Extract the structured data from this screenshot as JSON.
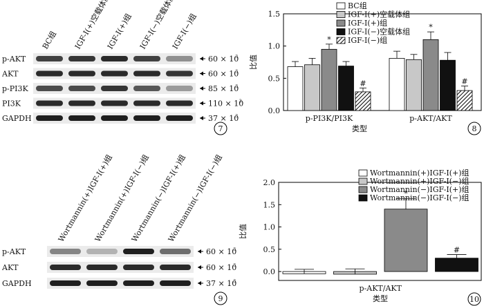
{
  "panel7": {
    "lanes": [
      "BC组",
      "IGF-Ⅰ(+)空载体组",
      "IGF-Ⅰ(+)组",
      "IGF-Ⅰ(−)空载体组",
      "IGF-Ⅰ(−)组"
    ],
    "rows": [
      {
        "name": "p-AKT",
        "mw": "60 × 10",
        "exp": "3",
        "intensity": [
          0.8,
          0.85,
          0.9,
          0.8,
          0.45
        ]
      },
      {
        "name": "AKT",
        "mw": "60 × 10",
        "exp": "3",
        "intensity": [
          0.9,
          0.9,
          0.9,
          0.9,
          0.85
        ]
      },
      {
        "name": "p-PI3K",
        "mw": "85 × 10",
        "exp": "3",
        "intensity": [
          0.75,
          0.75,
          0.85,
          0.7,
          0.4
        ]
      },
      {
        "name": "PI3K",
        "mw": "110 × 10",
        "exp": "3",
        "intensity": [
          0.9,
          0.9,
          0.9,
          0.9,
          0.9
        ]
      },
      {
        "name": "GAPDH",
        "mw": "37 × 10",
        "exp": "3",
        "intensity": [
          0.95,
          0.95,
          0.95,
          0.95,
          0.95
        ]
      }
    ],
    "badge": "7"
  },
  "panel9": {
    "lanes": [
      "Wortmannin(+)IGF-Ⅰ(+)组",
      "Wortmannin(+)IGF-Ⅰ(−)组",
      "Wortmannin(−)IGF-Ⅰ(+)组",
      "Wortmannin(−)IGF-Ⅰ(−)组"
    ],
    "rows": [
      {
        "name": "p-AKT",
        "mw": "60 × 10",
        "exp": "3",
        "intensity": [
          0.5,
          0.3,
          0.95,
          0.6
        ]
      },
      {
        "name": "AKT",
        "mw": "60 × 10",
        "exp": "3",
        "intensity": [
          0.9,
          0.9,
          0.9,
          0.9
        ]
      },
      {
        "name": "GAPDH",
        "mw": "37 × 10",
        "exp": "3",
        "intensity": [
          0.95,
          0.95,
          0.95,
          0.95
        ]
      }
    ],
    "badge": "9"
  },
  "chart_data": [
    {
      "type": "bar",
      "title": "",
      "xlabel": "类型",
      "ylabel": "比值",
      "ylim": [
        0,
        1.5
      ],
      "yticks": [
        "0.0",
        "0.5",
        "1.0",
        "1.5"
      ],
      "categories": [
        "p-PI3K/PI3K",
        "p-AKT/AKT"
      ],
      "series": [
        {
          "name": "BC组",
          "color": "#ffffff",
          "values": [
            0.68,
            0.81
          ],
          "errors": [
            0.08,
            0.11
          ],
          "marks": [
            "",
            ""
          ]
        },
        {
          "name": "IGF-Ⅰ(+)空载体组",
          "color": "#c8c8c8",
          "values": [
            0.71,
            0.79
          ],
          "errors": [
            0.1,
            0.08
          ],
          "marks": [
            "",
            ""
          ]
        },
        {
          "name": "IGF-Ⅰ(+)组",
          "color": "#8a8a8a",
          "values": [
            0.95,
            1.1
          ],
          "errors": [
            0.08,
            0.12
          ],
          "marks": [
            "*",
            "*"
          ]
        },
        {
          "name": "IGF-Ⅰ(−)空载体组",
          "color": "#111111",
          "values": [
            0.69,
            0.78
          ],
          "errors": [
            0.07,
            0.12
          ],
          "marks": [
            "",
            ""
          ]
        },
        {
          "name": "IGF-Ⅰ(−)组",
          "color": "hatch",
          "values": [
            0.29,
            0.31
          ],
          "errors": [
            0.06,
            0.07
          ],
          "marks": [
            "#",
            "#"
          ]
        }
      ],
      "badge": "8",
      "legend_position": "top-right"
    },
    {
      "type": "bar",
      "title": "",
      "xlabel": "类型",
      "ylabel": "比值",
      "ylim": [
        -0.2,
        2.0
      ],
      "yticks": [
        "0.0",
        "0.5",
        "1.0",
        "1.5",
        "2.0"
      ],
      "categories": [
        "p-AKT/AKT"
      ],
      "series": [
        {
          "name": "Wortmannin(+)IGF-Ⅰ(+)组",
          "color": "#ffffff",
          "values": [
            -0.05
          ],
          "errors": [
            0.1
          ],
          "marks": [
            ""
          ]
        },
        {
          "name": "Wortmannin(+)IGF-Ⅰ(−)组",
          "color": "#c8c8c8",
          "values": [
            -0.06
          ],
          "errors": [
            0.12
          ],
          "marks": [
            ""
          ]
        },
        {
          "name": "Wortmannin(−)IGF-Ⅰ(+)组",
          "color": "#8a8a8a",
          "values": [
            1.4
          ],
          "errors": [
            0.24
          ],
          "marks": [
            "*"
          ]
        },
        {
          "name": "Wortmannin(−)IGF-Ⅰ(−)组",
          "color": "#111111",
          "values": [
            0.3
          ],
          "errors": [
            0.08
          ],
          "marks": [
            "#"
          ]
        }
      ],
      "badge": "10",
      "legend_position": "top"
    }
  ]
}
